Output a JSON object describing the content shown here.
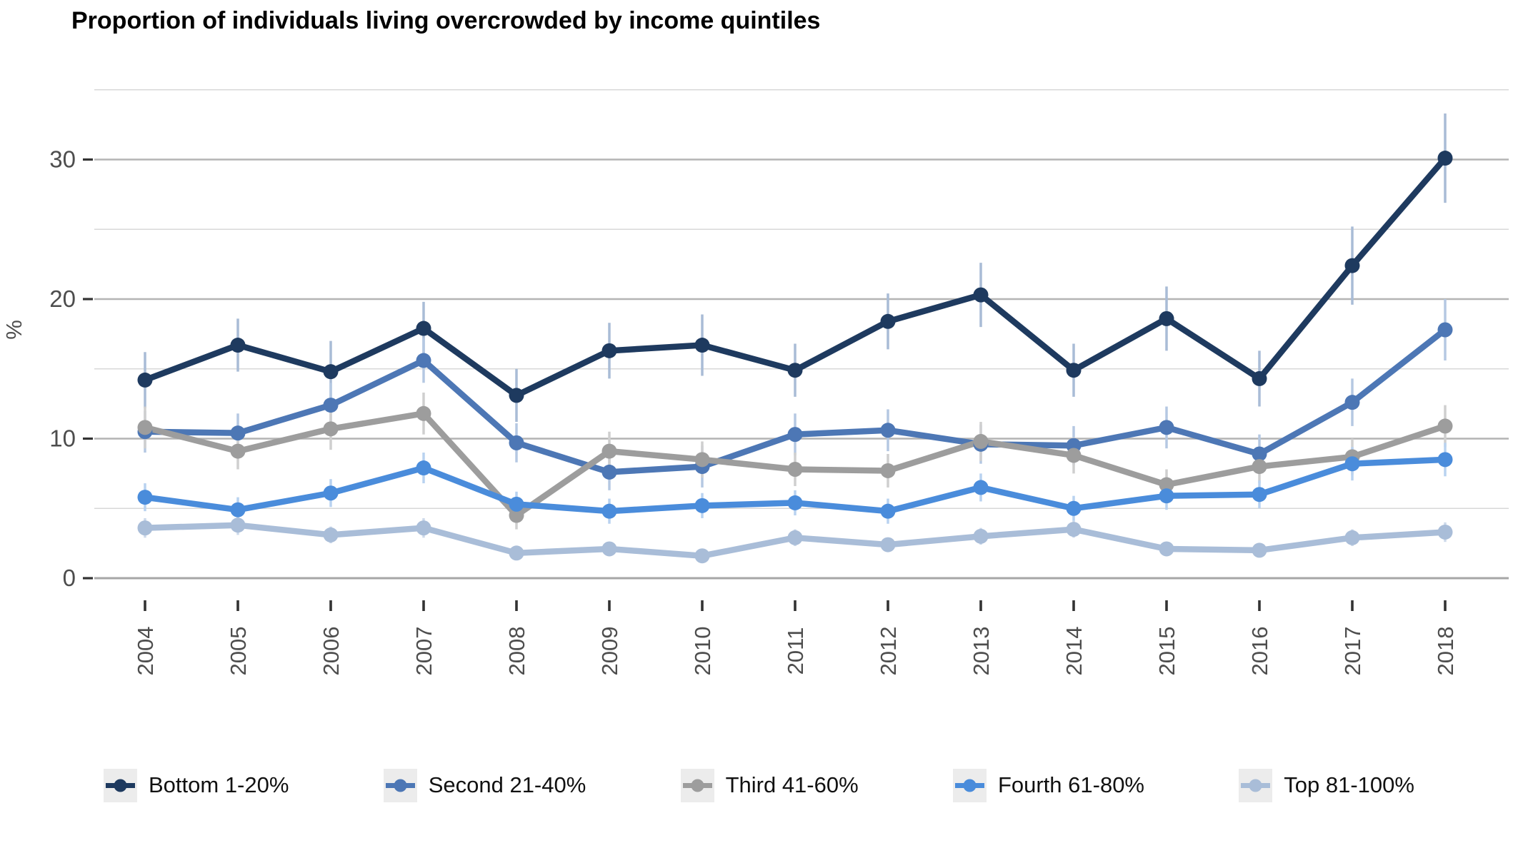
{
  "title": "Proportion of individuals living overcrowded by income quintiles",
  "y_axis": {
    "label": "%",
    "ticks": [
      0,
      10,
      20,
      30
    ],
    "minor_ticks": [
      5,
      15,
      25,
      35
    ]
  },
  "x_axis": {
    "tick_labels": [
      "2004",
      "2005",
      "2006",
      "2007",
      "2008",
      "2009",
      "2010",
      "2011",
      "2012",
      "2013",
      "2014",
      "2015",
      "2016",
      "2017",
      "2018"
    ]
  },
  "colors": {
    "major_gridline": "#b4b4b4",
    "zero_gridline": "#a6a6a6",
    "minor_gridline": "#d8d8d8",
    "tick_mark": "#333333",
    "axis_text": "#4d4d4d",
    "legend_key_bg": "#ececec"
  },
  "chart_data": {
    "type": "line",
    "title": "Proportion of individuals living overcrowded by income quintiles",
    "xlabel": "",
    "ylabel": "%",
    "ylim": [
      0,
      35.5
    ],
    "grid": true,
    "legend_position": "bottom",
    "error_bars": true,
    "x": [
      2004,
      2005,
      2006,
      2007,
      2008,
      2009,
      2010,
      2011,
      2012,
      2013,
      2014,
      2015,
      2016,
      2017,
      2018
    ],
    "series": [
      {
        "name": "Bottom 1-20%",
        "color": "#1e3a5f",
        "err_color": "#a9bcd6",
        "values": [
          14.2,
          16.7,
          14.8,
          17.9,
          13.1,
          16.3,
          16.7,
          14.9,
          18.4,
          20.3,
          14.9,
          18.6,
          14.3,
          22.4,
          30.1
        ],
        "err": [
          2.0,
          1.9,
          2.2,
          1.9,
          1.9,
          2.0,
          2.2,
          1.9,
          2.0,
          2.3,
          1.9,
          2.3,
          2.0,
          2.8,
          3.2
        ]
      },
      {
        "name": "Second 21-40%",
        "color": "#4d77b5",
        "err_color": "#b5c8e2",
        "values": [
          10.5,
          10.4,
          12.4,
          15.6,
          9.7,
          7.6,
          8.0,
          10.3,
          10.6,
          9.6,
          9.5,
          10.8,
          8.9,
          12.6,
          17.8
        ],
        "err": [
          1.5,
          1.4,
          1.6,
          1.6,
          1.4,
          1.3,
          1.5,
          1.5,
          1.5,
          1.4,
          1.4,
          1.5,
          1.4,
          1.7,
          2.2
        ]
      },
      {
        "name": "Third 41-60%",
        "color": "#9d9d9d",
        "err_color": "#cfcfcf",
        "values": [
          10.8,
          9.1,
          10.7,
          11.8,
          4.5,
          9.1,
          8.5,
          7.8,
          7.7,
          9.8,
          8.8,
          6.7,
          8.0,
          8.7,
          10.9
        ],
        "err": [
          1.5,
          1.3,
          1.5,
          1.5,
          1.0,
          1.4,
          1.3,
          1.2,
          1.2,
          1.4,
          1.3,
          1.1,
          1.2,
          1.3,
          1.5
        ]
      },
      {
        "name": "Fourth 61-80%",
        "color": "#4a8cdb",
        "err_color": "#b9d2f0",
        "values": [
          5.8,
          4.9,
          6.1,
          7.9,
          5.3,
          4.8,
          5.2,
          5.4,
          4.8,
          6.5,
          5.0,
          5.9,
          6.0,
          8.2,
          8.5
        ],
        "err": [
          1.0,
          0.9,
          1.0,
          1.1,
          0.9,
          0.9,
          0.9,
          0.9,
          0.9,
          1.0,
          0.9,
          1.0,
          1.0,
          1.2,
          1.2
        ]
      },
      {
        "name": "Top 81-100%",
        "color": "#a9bdd8",
        "err_color": "#ccd9ea",
        "values": [
          3.6,
          3.8,
          3.1,
          3.6,
          1.8,
          2.1,
          1.6,
          2.9,
          2.4,
          3.0,
          3.5,
          2.1,
          2.0,
          2.9,
          3.3
        ],
        "err": [
          0.7,
          0.7,
          0.6,
          0.7,
          0.5,
          0.5,
          0.5,
          0.6,
          0.5,
          0.6,
          0.6,
          0.5,
          0.5,
          0.6,
          0.7
        ]
      }
    ]
  }
}
